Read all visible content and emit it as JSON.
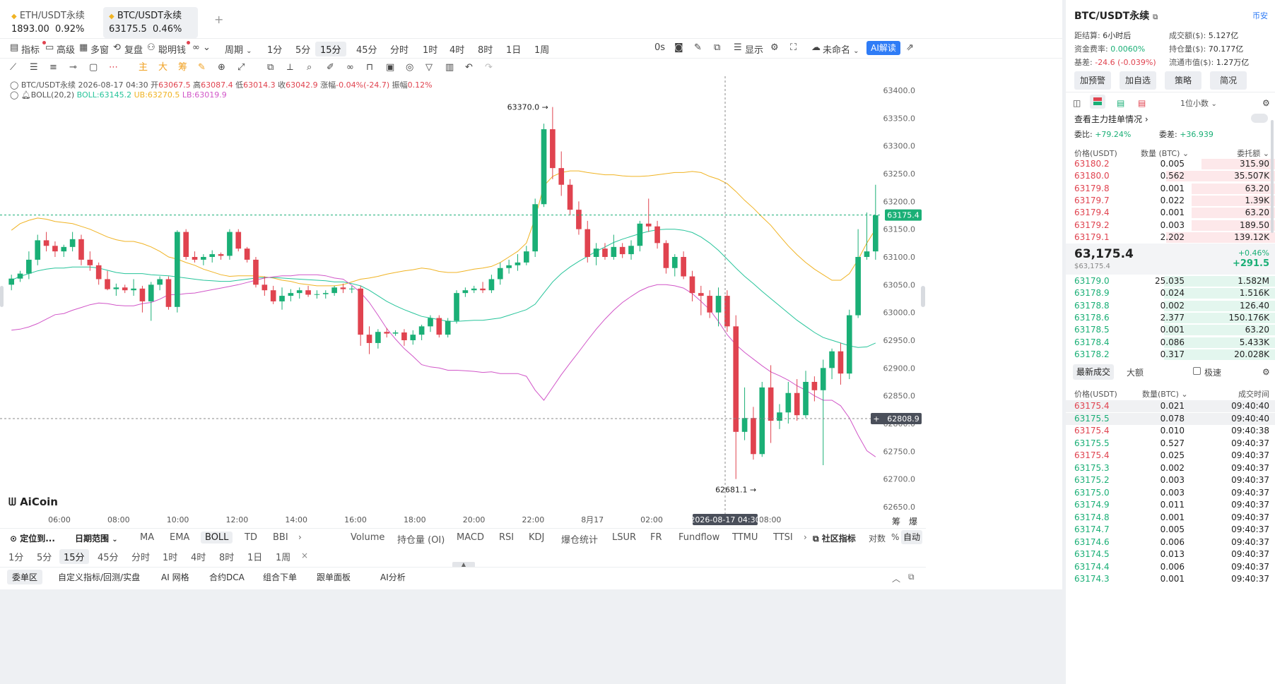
{
  "tabs": [
    {
      "name": "ETH/USDT永续",
      "price": "1893.00",
      "change": "0.92%",
      "active": false
    },
    {
      "name": "BTC/USDT永续",
      "price": "63175.5",
      "change": "0.46%",
      "active": true
    }
  ],
  "toolbar": {
    "items": [
      "指标",
      "高级",
      "多窗",
      "复盘",
      "聪明钱",
      "周期"
    ],
    "periods": [
      "1分",
      "5分",
      "15分",
      "45分",
      "分时",
      "1时",
      "4时",
      "8时",
      "1日",
      "1周"
    ],
    "active_period": "15分",
    "right": [
      "0s",
      "显示",
      "未命名",
      "AI解读"
    ]
  },
  "drawtools": [
    "主",
    "大",
    "筹"
  ],
  "legend": {
    "line1": {
      "symbol": "BTC/USDT永续",
      "date": "2026-08-17 04:30",
      "open_label": "开",
      "open": "63067.5",
      "high_label": "高",
      "high": "63087.4",
      "low_label": "低",
      "low": "63014.3",
      "close_label": "收",
      "close": "63042.9",
      "chg_label": "涨幅",
      "chg": "-0.04%(-24.7)",
      "amp_label": "振幅",
      "amp": "0.12%"
    },
    "line2": {
      "name": "BOLL(20,2)",
      "boll": "BOLL:63145.2",
      "ub": "UB:63270.5",
      "lb": "LB:63019.9"
    }
  },
  "chart_data": {
    "type": "candlestick",
    "ylim": [
      62650,
      63400
    ],
    "y_ticks": [
      "63400.0",
      "63350.0",
      "63300.0",
      "63250.0",
      "63200.0",
      "63150.0",
      "63100.0",
      "63050.0",
      "63000.0",
      "62950.0",
      "62900.0",
      "62850.0",
      "62800.0",
      "62750.0",
      "62700.0",
      "62650.0"
    ],
    "x_ticks": [
      "06:00",
      "08:00",
      "10:00",
      "12:00",
      "14:00",
      "16:00",
      "18:00",
      "20:00",
      "22:00",
      "8月17",
      "02:00",
      "06:00",
      "08:00"
    ],
    "crosshair_time": "2026-08-17 04:30",
    "current_price": "63175.4",
    "crosshair_price": "62808.9",
    "high_mark": "63370.0",
    "low_mark": "62681.1",
    "ohlc": [
      [
        63050,
        63068,
        63040,
        63061
      ],
      [
        63061,
        63075,
        63055,
        63070
      ],
      [
        63070,
        63110,
        63060,
        63095
      ],
      [
        63095,
        63140,
        63085,
        63130
      ],
      [
        63130,
        63145,
        63110,
        63120
      ],
      [
        63120,
        63128,
        63100,
        63110
      ],
      [
        63110,
        63122,
        63100,
        63118
      ],
      [
        63118,
        63145,
        63110,
        63132
      ],
      [
        63132,
        63140,
        63085,
        63095
      ],
      [
        63095,
        63110,
        63075,
        63085
      ],
      [
        63085,
        63090,
        63050,
        63060
      ],
      [
        63060,
        63075,
        63040,
        63042
      ],
      [
        63042,
        63052,
        63030,
        63045
      ],
      [
        63045,
        63050,
        63035,
        63040
      ],
      [
        63040,
        63060,
        63030,
        63043
      ],
      [
        63043,
        63048,
        63000,
        63020
      ],
      [
        63020,
        63055,
        62985,
        63050
      ],
      [
        63050,
        63065,
        63040,
        63060
      ],
      [
        63060,
        63065,
        63005,
        63010
      ],
      [
        63010,
        63148,
        63000,
        63145
      ],
      [
        63145,
        63150,
        63095,
        63100
      ],
      [
        63100,
        63110,
        63090,
        63095
      ],
      [
        63095,
        63105,
        63085,
        63100
      ],
      [
        63100,
        63112,
        63090,
        63105
      ],
      [
        63105,
        63108,
        63095,
        63102
      ],
      [
        63102,
        63150,
        63095,
        63145
      ],
      [
        63145,
        63150,
        63110,
        63115
      ],
      [
        63115,
        63118,
        63090,
        63095
      ],
      [
        63095,
        63100,
        63045,
        63050
      ],
      [
        63050,
        63065,
        63030,
        63040
      ],
      [
        63040,
        63048,
        63015,
        63020
      ],
      [
        63020,
        63045,
        63005,
        63030
      ],
      [
        63030,
        63042,
        63020,
        63035
      ],
      [
        63035,
        63045,
        63025,
        63040
      ],
      [
        63040,
        63048,
        63028,
        63032
      ],
      [
        63032,
        63040,
        63025,
        63033
      ],
      [
        63033,
        63040,
        63025,
        63035
      ],
      [
        63035,
        63048,
        63030,
        63045
      ],
      [
        63045,
        63052,
        63035,
        63042
      ],
      [
        63042,
        63048,
        63035,
        63043
      ],
      [
        63043,
        63048,
        62940,
        62960
      ],
      [
        62960,
        62975,
        62925,
        62945
      ],
      [
        62945,
        62970,
        62935,
        62965
      ],
      [
        62965,
        62972,
        62955,
        62962
      ],
      [
        62962,
        62968,
        62958,
        62964
      ],
      [
        62964,
        62970,
        62940,
        62950
      ],
      [
        62950,
        62968,
        62942,
        62960
      ],
      [
        62960,
        62978,
        62950,
        62975
      ],
      [
        62975,
        62995,
        62965,
        62990
      ],
      [
        62990,
        62995,
        62955,
        62960
      ],
      [
        62960,
        62990,
        62955,
        62985
      ],
      [
        62985,
        63040,
        62980,
        63035
      ],
      [
        63035,
        63045,
        63028,
        63040
      ],
      [
        63040,
        63048,
        63035,
        63043
      ],
      [
        63043,
        63055,
        63035,
        63040
      ],
      [
        63040,
        63068,
        63035,
        63060
      ],
      [
        63060,
        63090,
        63050,
        63080
      ],
      [
        63080,
        63095,
        63070,
        63085
      ],
      [
        63085,
        63105,
        63075,
        63090
      ],
      [
        63090,
        63120,
        63085,
        63110
      ],
      [
        63110,
        63205,
        63100,
        63195
      ],
      [
        63195,
        63340,
        63190,
        63330
      ],
      [
        63330,
        63370,
        63240,
        63260
      ],
      [
        63260,
        63290,
        63210,
        63230
      ],
      [
        63230,
        63240,
        63175,
        63185
      ],
      [
        63185,
        63200,
        63140,
        63150
      ],
      [
        63150,
        63165,
        63090,
        63100
      ],
      [
        63100,
        63125,
        63085,
        63115
      ],
      [
        63115,
        63125,
        63095,
        63100
      ],
      [
        63100,
        63140,
        63095,
        63118
      ],
      [
        63118,
        63125,
        63098,
        63105
      ],
      [
        63105,
        63130,
        63095,
        63120
      ],
      [
        63120,
        63165,
        63110,
        63160
      ],
      [
        63160,
        63205,
        63145,
        63155
      ],
      [
        63155,
        63165,
        63115,
        63125
      ],
      [
        63125,
        63130,
        63070,
        63080
      ],
      [
        63080,
        63105,
        63065,
        63100
      ],
      [
        63100,
        63110,
        63060,
        63065
      ],
      [
        63065,
        63075,
        63020,
        63035
      ],
      [
        63035,
        63048,
        62995,
        63030
      ],
      [
        63030,
        63040,
        62990,
        63000
      ],
      [
        63000,
        63045,
        62975,
        63030
      ],
      [
        63030,
        63040,
        62965,
        62975
      ],
      [
        62975,
        62995,
        62700,
        62785
      ],
      [
        62785,
        62865,
        62770,
        62810
      ],
      [
        62810,
        62830,
        62735,
        62745
      ],
      [
        62745,
        62875,
        62740,
        62865
      ],
      [
        62865,
        62905,
        62765,
        62805
      ],
      [
        62805,
        62835,
        62790,
        62820
      ],
      [
        62820,
        62875,
        62800,
        62855
      ],
      [
        62855,
        62880,
        62805,
        62815
      ],
      [
        62815,
        62895,
        62810,
        62875
      ],
      [
        62875,
        62885,
        62840,
        62860
      ],
      [
        62860,
        62915,
        62725,
        62900
      ],
      [
        62900,
        62935,
        62880,
        62930
      ],
      [
        62930,
        62945,
        62870,
        62890
      ],
      [
        62890,
        63005,
        62880,
        62995
      ],
      [
        62995,
        63150,
        62990,
        63100
      ],
      [
        63100,
        63180,
        63095,
        63110
      ],
      [
        63110,
        63230,
        63095,
        63175
      ]
    ],
    "boll_ub": [
      63148,
      63160,
      63166,
      63170,
      63168,
      63164,
      63162,
      63160,
      63155,
      63150,
      63143,
      63136,
      63131,
      63128,
      63128,
      63124,
      63118,
      63110,
      63100,
      63096,
      63090,
      63085,
      63078,
      63073,
      63068,
      63065,
      63066,
      63066,
      63066,
      63064,
      63062,
      63058,
      63056,
      63052,
      63050,
      63048,
      63048,
      63048,
      63050,
      63055,
      63060,
      63062,
      63065,
      63069,
      63072,
      63075,
      63077,
      63080,
      63078,
      63074,
      63072,
      63072,
      63075,
      63078,
      63080,
      63083,
      63090,
      63100,
      63110,
      63125,
      63170,
      63228,
      63245,
      63252,
      63255,
      63255,
      63252,
      63250,
      63248,
      63248,
      63246,
      63245,
      63245,
      63246,
      63248,
      63250,
      63252,
      63252,
      63254,
      63252,
      63245,
      63240,
      63232,
      63218,
      63202,
      63188,
      63172,
      63157,
      63138,
      63120,
      63104,
      63090,
      63078,
      63068,
      63058,
      63058,
      63070,
      63095,
      63125,
      63150
    ],
    "boll_mid": [
      63058,
      63065,
      63070,
      63075,
      63078,
      63080,
      63080,
      63082,
      63082,
      63082,
      63080,
      63076,
      63072,
      63070,
      63070,
      63070,
      63068,
      63067,
      63066,
      63064,
      63062,
      63060,
      63058,
      63057,
      63056,
      63056,
      63058,
      63060,
      63062,
      63063,
      63063,
      63062,
      63061,
      63060,
      63059,
      63058,
      63057,
      63055,
      63055,
      63052,
      63048,
      63040,
      63030,
      63020,
      63012,
      63005,
      62999,
      62993,
      62990,
      62987,
      62984,
      62984,
      62985,
      62986,
      62986,
      62988,
      62990,
      62995,
      63000,
      63005,
      63015,
      63035,
      63055,
      63070,
      63082,
      63092,
      63101,
      63110,
      63118,
      63126,
      63132,
      63137,
      63142,
      63146,
      63149,
      63150,
      63150,
      63148,
      63144,
      63136,
      63125,
      63112,
      63096,
      63080,
      63065,
      63052,
      63038,
      63025,
      63012,
      62999,
      62986,
      62975,
      62964,
      62955,
      62950,
      62945,
      62940,
      62937,
      62938,
      62945
    ],
    "boll_lb": [
      62968,
      62970,
      62974,
      62980,
      62988,
      62996,
      62998,
      63004,
      63009,
      63014,
      63017,
      63016,
      63013,
      63012,
      63012,
      63016,
      63018,
      63024,
      63032,
      63032,
      63034,
      63035,
      63038,
      63041,
      63044,
      63047,
      63050,
      63054,
      63058,
      63062,
      63064,
      63066,
      63066,
      63068,
      63068,
      63068,
      63066,
      63062,
      63060,
      63049,
      63036,
      63018,
      62995,
      62971,
      62952,
      62935,
      62921,
      62906,
      62902,
      62900,
      62896,
      62896,
      62895,
      62894,
      62892,
      62893,
      62890,
      62890,
      62890,
      62885,
      62860,
      62842,
      62865,
      62888,
      62909,
      62929,
      62950,
      62970,
      62988,
      63004,
      63018,
      63029,
      63039,
      63046,
      63050,
      63050,
      63048,
      63044,
      63034,
      63020,
      63005,
      62984,
      62960,
      62942,
      62928,
      62916,
      62904,
      62893,
      62886,
      62878,
      62868,
      62860,
      62850,
      62842,
      62842,
      62832,
      62810,
      62779,
      62751,
      62740
    ]
  },
  "watermark": "AiCoin",
  "indicators_main": [
    "MA",
    "EMA",
    "BOLL",
    "TD",
    "BBI"
  ],
  "indicators_active": "BOLL",
  "indicators_sub": [
    "Volume",
    "持仓量 (OI)",
    "MACD",
    "RSI",
    "KDJ",
    "爆仓统计",
    "LSUR",
    "FR",
    "Fundflow",
    "TTMU",
    "TTSI"
  ],
  "bottom_bar": {
    "locate": "定位到...",
    "range": "日期范围",
    "community": "社区指标",
    "log": "对数",
    "pct": "%",
    "auto": "自动"
  },
  "period_row": [
    "1分",
    "5分",
    "15分",
    "45分",
    "分时",
    "1时",
    "4时",
    "8时",
    "1日",
    "1周"
  ],
  "bottom_tabs": [
    "委单区",
    "自定义指标/回测/实盘",
    "AI 网格",
    "合约DCA",
    "组合下单",
    "跟单面板",
    "AI分析"
  ],
  "chart_corner_labels": [
    "筹",
    "爆"
  ],
  "right_panel": {
    "title": "BTC/USDT永续",
    "exchange": "币安",
    "stats": [
      {
        "label": "距结算:",
        "value": "6小时后"
      },
      {
        "label": "成交额($):",
        "value": "5.127亿"
      },
      {
        "label": "资金费率:",
        "value": "0.0060%"
      },
      {
        "label": "持仓量($):",
        "value": "70.177亿"
      },
      {
        "label": "基差:",
        "value": "-24.6 (-0.039%)"
      },
      {
        "label": "流通市值($):",
        "value": "1.27万亿"
      }
    ],
    "buttons": [
      "加预警",
      "加自选",
      "策略",
      "简况"
    ],
    "decimal": "1位小数",
    "depth_link": "查看主力挂单情况",
    "bid_ratio_label": "委比:",
    "bid_ratio": "+79.24%",
    "bid_diff_label": "委差:",
    "bid_diff": "+36.939",
    "ob_headers": [
      "价格(USDT)",
      "数量 (BTC)",
      "委托额"
    ],
    "asks": [
      {
        "price": "63180.2",
        "qty": "0.005",
        "amt": "315.90",
        "w": 0.35
      },
      {
        "price": "63180.0",
        "qty": "0.562",
        "amt": "35.507K",
        "w": 0.52
      },
      {
        "price": "63179.8",
        "qty": "0.001",
        "amt": "63.20",
        "w": 0.4
      },
      {
        "price": "63179.7",
        "qty": "0.022",
        "amt": "1.39K",
        "w": 0.4
      },
      {
        "price": "63179.4",
        "qty": "0.001",
        "amt": "63.20",
        "w": 0.4
      },
      {
        "price": "63179.2",
        "qty": "0.003",
        "amt": "189.50",
        "w": 0.4
      },
      {
        "price": "63179.1",
        "qty": "2.202",
        "amt": "139.12K",
        "w": 0.52
      }
    ],
    "mid_price": "63,175.4",
    "mid_usd": "$63,175.4",
    "mid_pct": "+0.46%",
    "mid_chg": "+291.5",
    "bids": [
      {
        "price": "63179.0",
        "qty": "25.035",
        "amt": "1.582M",
        "w": 0.53
      },
      {
        "price": "63178.9",
        "qty": "0.024",
        "amt": "1.516K",
        "w": 0.53
      },
      {
        "price": "63178.8",
        "qty": "0.002",
        "amt": "126.40",
        "w": 0.53
      },
      {
        "price": "63178.6",
        "qty": "2.377",
        "amt": "150.176K",
        "w": 0.53
      },
      {
        "price": "63178.5",
        "qty": "0.001",
        "amt": "63.20",
        "w": 0.53
      },
      {
        "price": "63178.4",
        "qty": "0.086",
        "amt": "5.433K",
        "w": 0.53
      },
      {
        "price": "63178.2",
        "qty": "0.317",
        "amt": "20.028K",
        "w": 0.53
      }
    ],
    "trade_tabs": [
      "最新成交",
      "大额"
    ],
    "fast_label": "极速",
    "trade_headers": [
      "价格(USDT)",
      "数量(BTC)",
      "成交时间"
    ],
    "trades": [
      {
        "price": "63175.4",
        "qty": "0.021",
        "time": "09:40:40",
        "side": "sell"
      },
      {
        "price": "63175.5",
        "qty": "0.078",
        "time": "09:40:40",
        "side": "buy"
      },
      {
        "price": "63175.4",
        "qty": "0.010",
        "time": "09:40:38",
        "side": "sell"
      },
      {
        "price": "63175.5",
        "qty": "0.527",
        "time": "09:40:37",
        "side": "buy"
      },
      {
        "price": "63175.4",
        "qty": "0.025",
        "time": "09:40:37",
        "side": "sell"
      },
      {
        "price": "63175.3",
        "qty": "0.002",
        "time": "09:40:37",
        "side": "buy"
      },
      {
        "price": "63175.2",
        "qty": "0.003",
        "time": "09:40:37",
        "side": "buy"
      },
      {
        "price": "63175.0",
        "qty": "0.003",
        "time": "09:40:37",
        "side": "buy"
      },
      {
        "price": "63174.9",
        "qty": "0.011",
        "time": "09:40:37",
        "side": "buy"
      },
      {
        "price": "63174.8",
        "qty": "0.001",
        "time": "09:40:37",
        "side": "buy"
      },
      {
        "price": "63174.7",
        "qty": "0.005",
        "time": "09:40:37",
        "side": "buy"
      },
      {
        "price": "63174.6",
        "qty": "0.006",
        "time": "09:40:37",
        "side": "buy"
      },
      {
        "price": "63174.5",
        "qty": "0.013",
        "time": "09:40:37",
        "side": "buy"
      },
      {
        "price": "63174.4",
        "qty": "0.006",
        "time": "09:40:37",
        "side": "buy"
      },
      {
        "price": "63174.3",
        "qty": "0.001",
        "time": "09:40:37",
        "side": "buy"
      }
    ]
  },
  "colors": {
    "up": "#1aaf76",
    "down": "#e0434f",
    "ub": "#f0b323",
    "mid": "#26c49a",
    "lb": "#d156c8",
    "accent": "#2f7cf6"
  }
}
